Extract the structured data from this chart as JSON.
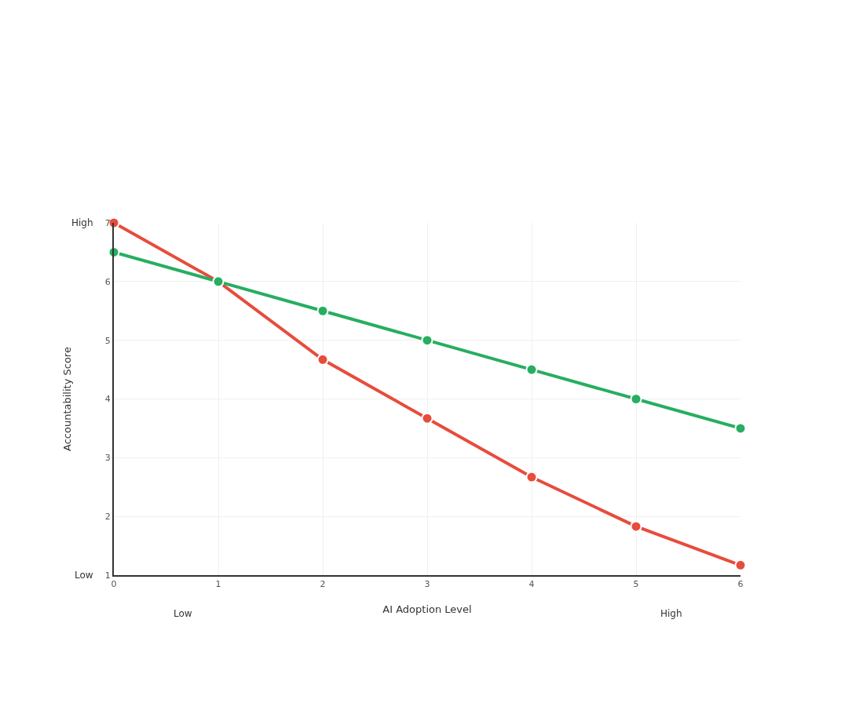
{
  "chart_data": {
    "type": "line",
    "xlabel": "AI Adoption Level",
    "ylabel": "Accountability Score",
    "x": [
      0,
      1,
      2,
      3,
      4,
      5,
      6
    ],
    "series": [
      {
        "color": "#e74c3c",
        "values": [
          7.0,
          6.0,
          4.67,
          3.67,
          2.67,
          1.83,
          1.17
        ]
      },
      {
        "color": "#27ae60",
        "values": [
          6.5,
          6.0,
          5.5,
          5.0,
          4.5,
          4.0,
          3.5
        ]
      }
    ],
    "xlim": [
      0,
      6
    ],
    "xticks": [
      0,
      1,
      2,
      3,
      4,
      5,
      6
    ],
    "ylim": [
      1,
      7
    ],
    "yticks": [
      1,
      2,
      3,
      4,
      5,
      6,
      7
    ],
    "grid": true,
    "marker": "circle",
    "line_style": "solid",
    "annotations": [
      "High",
      "Low",
      "Low",
      "High"
    ]
  }
}
